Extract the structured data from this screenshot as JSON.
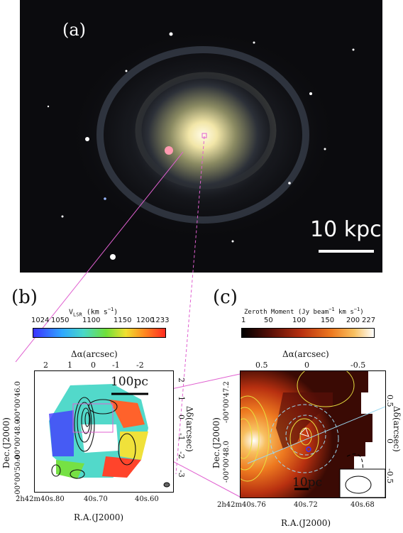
{
  "panel_a": {
    "label": "(a)",
    "scale_bar": "10 kpc"
  },
  "panel_b": {
    "label": "(b)",
    "colorbar_title": "V_LSR (km s^-1)",
    "colorbar_ticks": [
      "1024",
      "1050",
      "1100",
      "1150",
      "1200",
      "1233"
    ],
    "top_axis_label": "Δα(arcsec)",
    "top_ticks": [
      "2",
      "1",
      "0",
      "-1",
      "-2"
    ],
    "right_axis_label": "Δδ(arcsec)",
    "right_ticks": [
      "2",
      "1",
      "0",
      "-1",
      "-2",
      "-3"
    ],
    "left_axis_label": "Dec.(J2000)",
    "left_ticks": [
      "-00°00'46.0",
      "-00°00'48.0",
      "-00°00'50.0"
    ],
    "bottom_axis_label": "R.A.(J2000)",
    "bottom_ticks": [
      "2h42m40s.80",
      "40s.70",
      "40s.60"
    ],
    "scale_bar": "100pc"
  },
  "panel_c": {
    "label": "(c)",
    "colorbar_title": "Zeroth Moment (Jy beam^-1 km s^-1)",
    "colorbar_ticks": [
      "1",
      "50",
      "100",
      "150",
      "200",
      "227"
    ],
    "top_axis_label": "Δα(arcsec)",
    "top_ticks": [
      "0.5",
      "0",
      "-0.5"
    ],
    "right_axis_label": "Δδ(arcsec)",
    "right_ticks": [
      "0.5",
      "0",
      "-0.5"
    ],
    "left_axis_label": "Dec.(J2000)",
    "left_ticks": [
      "-00°00'47.2",
      "-00°00'48.0"
    ],
    "bottom_axis_label": "R.A.(J2000)",
    "bottom_ticks": [
      "2h42m40s.76",
      "40s.72",
      "40s.68"
    ],
    "scale_bar": "10pc"
  },
  "colors": {
    "connector": "#e060d0",
    "velocity_scale": [
      "#3b32ff",
      "#2fa8ff",
      "#49d8c8",
      "#6fe03a",
      "#f0e030",
      "#ff8a20",
      "#ff2a20"
    ],
    "moment_scale": [
      "#000000",
      "#5a1008",
      "#b83010",
      "#ee7a20",
      "#f8c060",
      "#ffffff"
    ]
  }
}
